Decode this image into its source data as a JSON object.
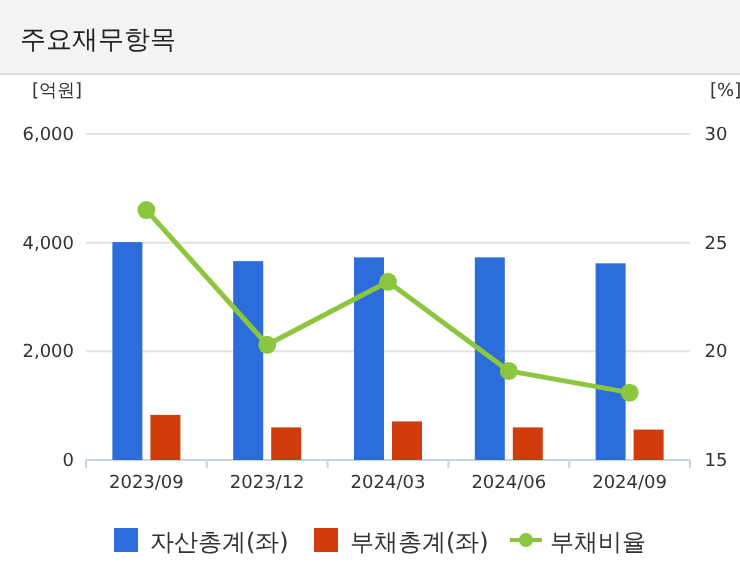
{
  "chart_data": {
    "type": "bar",
    "title": "주요재무항목",
    "ylabel": "[억원]",
    "y2label": "[%]",
    "categories": [
      "2023/09",
      "2023/12",
      "2024/03",
      "2024/06",
      "2024/09"
    ],
    "series": [
      {
        "name": "자산총계(좌)",
        "color": "#2a6ddb",
        "values": [
          4010,
          3660,
          3730,
          3730,
          3620
        ]
      },
      {
        "name": "부채총계(좌)",
        "color": "#d03c0c",
        "values": [
          830,
          600,
          710,
          600,
          560
        ]
      },
      {
        "name": "부채비율",
        "type": "line",
        "axis": "y2",
        "color": "#8cc63f",
        "values": [
          26.5,
          20.3,
          23.2,
          19.1,
          18.1
        ]
      }
    ],
    "ylim": [
      0,
      6000
    ],
    "yticks": [
      {
        "value": 0,
        "label": "0"
      },
      {
        "value": 2000,
        "label": "2,000"
      },
      {
        "value": 4000,
        "label": "4,000"
      },
      {
        "value": 6000,
        "label": "6,000"
      }
    ],
    "y2lim": [
      15,
      30
    ],
    "y2ticks": [
      15,
      20,
      25,
      30
    ],
    "grid": "y",
    "legend": "bottom",
    "marker": "circle"
  }
}
